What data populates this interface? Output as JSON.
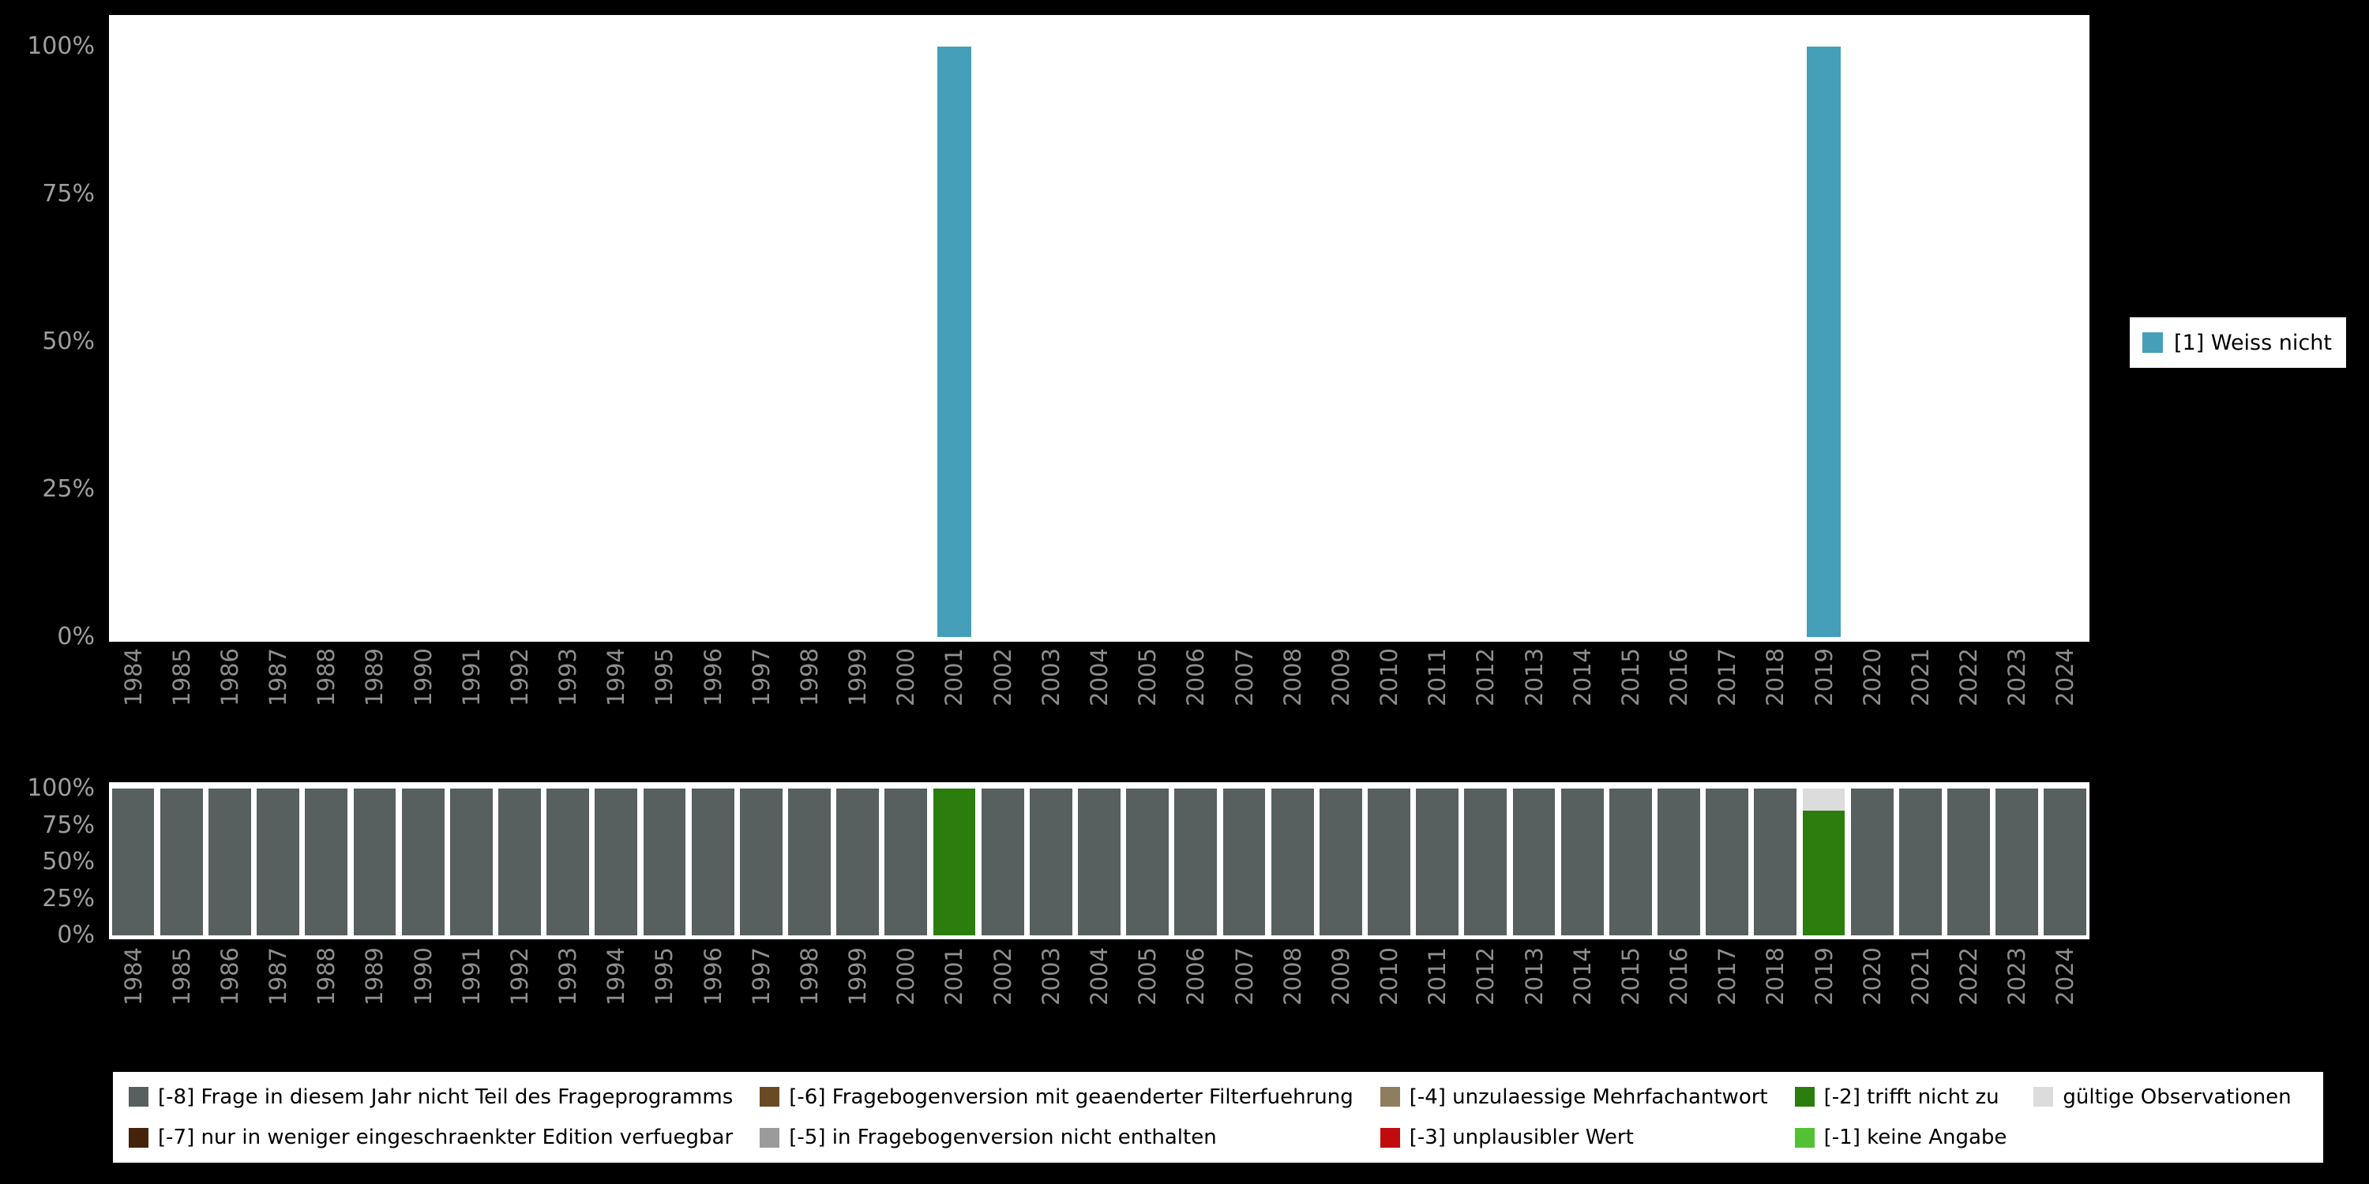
{
  "colors": {
    "background": "#000000",
    "plot_background": "#ffffff",
    "axis_label": "#8e8e8e",
    "ytick_label": "#9e9e9e",
    "legend_background": "#ffffff",
    "legend_text": "#000000"
  },
  "axis": {
    "yticks": [
      {
        "value": 100,
        "label": "100%"
      },
      {
        "value": 75,
        "label": "75%"
      },
      {
        "value": 50,
        "label": "50%"
      },
      {
        "value": 25,
        "label": "25%"
      },
      {
        "value": 0,
        "label": "0%"
      }
    ]
  },
  "chart_data": [
    {
      "type": "bar",
      "title": "",
      "xlabel": "",
      "ylabel": "",
      "ylim": [
        0,
        100
      ],
      "yticks": [
        "0%",
        "25%",
        "50%",
        "75%",
        "100%"
      ],
      "legend_position": "right",
      "categories": [
        "1984",
        "1985",
        "1986",
        "1987",
        "1988",
        "1989",
        "1990",
        "1991",
        "1992",
        "1993",
        "1994",
        "1995",
        "1996",
        "1997",
        "1998",
        "1999",
        "2000",
        "2001",
        "2002",
        "2003",
        "2004",
        "2005",
        "2006",
        "2007",
        "2008",
        "2009",
        "2010",
        "2011",
        "2012",
        "2013",
        "2014",
        "2015",
        "2016",
        "2017",
        "2018",
        "2019",
        "2020",
        "2021",
        "2022",
        "2023",
        "2024"
      ],
      "series": [
        {
          "name": "[1] Weiss nicht",
          "color": "#459fb8",
          "values": [
            0,
            0,
            0,
            0,
            0,
            0,
            0,
            0,
            0,
            0,
            0,
            0,
            0,
            0,
            0,
            0,
            0,
            100,
            0,
            0,
            0,
            0,
            0,
            0,
            0,
            0,
            0,
            0,
            0,
            0,
            0,
            0,
            0,
            0,
            0,
            100,
            0,
            0,
            0,
            0,
            0
          ]
        }
      ]
    },
    {
      "type": "stacked-bar",
      "title": "",
      "xlabel": "",
      "ylabel": "",
      "ylim": [
        0,
        100
      ],
      "yticks": [
        "0%",
        "25%",
        "50%",
        "75%",
        "100%"
      ],
      "legend_position": "bottom",
      "categories": [
        "1984",
        "1985",
        "1986",
        "1987",
        "1988",
        "1989",
        "1990",
        "1991",
        "1992",
        "1993",
        "1994",
        "1995",
        "1996",
        "1997",
        "1998",
        "1999",
        "2000",
        "2001",
        "2002",
        "2003",
        "2004",
        "2005",
        "2006",
        "2007",
        "2008",
        "2009",
        "2010",
        "2011",
        "2012",
        "2013",
        "2014",
        "2015",
        "2016",
        "2017",
        "2018",
        "2019",
        "2020",
        "2021",
        "2022",
        "2023",
        "2024"
      ],
      "series": [
        {
          "name": "[-8] Frage in diesem Jahr nicht Teil des Frageprogramms",
          "color": "#575f5f",
          "values": [
            100,
            100,
            100,
            100,
            100,
            100,
            100,
            100,
            100,
            100,
            100,
            100,
            100,
            100,
            100,
            100,
            100,
            0,
            100,
            100,
            100,
            100,
            100,
            100,
            100,
            100,
            100,
            100,
            100,
            100,
            100,
            100,
            100,
            100,
            100,
            0,
            100,
            100,
            100,
            100,
            100
          ]
        },
        {
          "name": "[-2] trifft nicht zu",
          "color": "#2b7d0e",
          "values": [
            0,
            0,
            0,
            0,
            0,
            0,
            0,
            0,
            0,
            0,
            0,
            0,
            0,
            0,
            0,
            0,
            0,
            100,
            0,
            0,
            0,
            0,
            0,
            0,
            0,
            0,
            0,
            0,
            0,
            0,
            0,
            0,
            0,
            0,
            0,
            85,
            0,
            0,
            0,
            0,
            0
          ]
        },
        {
          "name": "gültige Observationen",
          "color": "#dcdcdc",
          "values": [
            0,
            0,
            0,
            0,
            0,
            0,
            0,
            0,
            0,
            0,
            0,
            0,
            0,
            0,
            0,
            0,
            0,
            0,
            0,
            0,
            0,
            0,
            0,
            0,
            0,
            0,
            0,
            0,
            0,
            0,
            0,
            0,
            0,
            0,
            0,
            15,
            0,
            0,
            0,
            0,
            0
          ]
        }
      ]
    }
  ],
  "legend_right": {
    "items": [
      {
        "label": "[1] Weiss nicht",
        "color": "#459fb8"
      }
    ]
  },
  "legend_bottom": {
    "items": [
      {
        "code": "-8",
        "label": "[-8] Frage in diesem Jahr nicht Teil des Frageprogramms",
        "color": "#575f5f"
      },
      {
        "code": "-7",
        "label": "[-7] nur in weniger eingeschraenkter Edition verfuegbar",
        "color": "#45230b"
      },
      {
        "code": "-6",
        "label": "[-6] Fragebogenversion mit geaenderter Filterfuehrung",
        "color": "#6a4a24"
      },
      {
        "code": "-5",
        "label": "[-5] in Fragebogenversion nicht enthalten",
        "color": "#9b9b9b"
      },
      {
        "code": "-4",
        "label": "[-4] unzulaessige Mehrfachantwort",
        "color": "#8f7d5f"
      },
      {
        "code": "-3",
        "label": "[-3] unplausibler Wert",
        "color": "#c00c0c"
      },
      {
        "code": "-2",
        "label": "[-2] trifft nicht zu",
        "color": "#2b7d0e"
      },
      {
        "code": "-1",
        "label": "[-1] keine Angabe",
        "color": "#52c234"
      },
      {
        "code": "valid",
        "label": "gültige Observationen",
        "color": "#dcdcdc"
      }
    ]
  }
}
